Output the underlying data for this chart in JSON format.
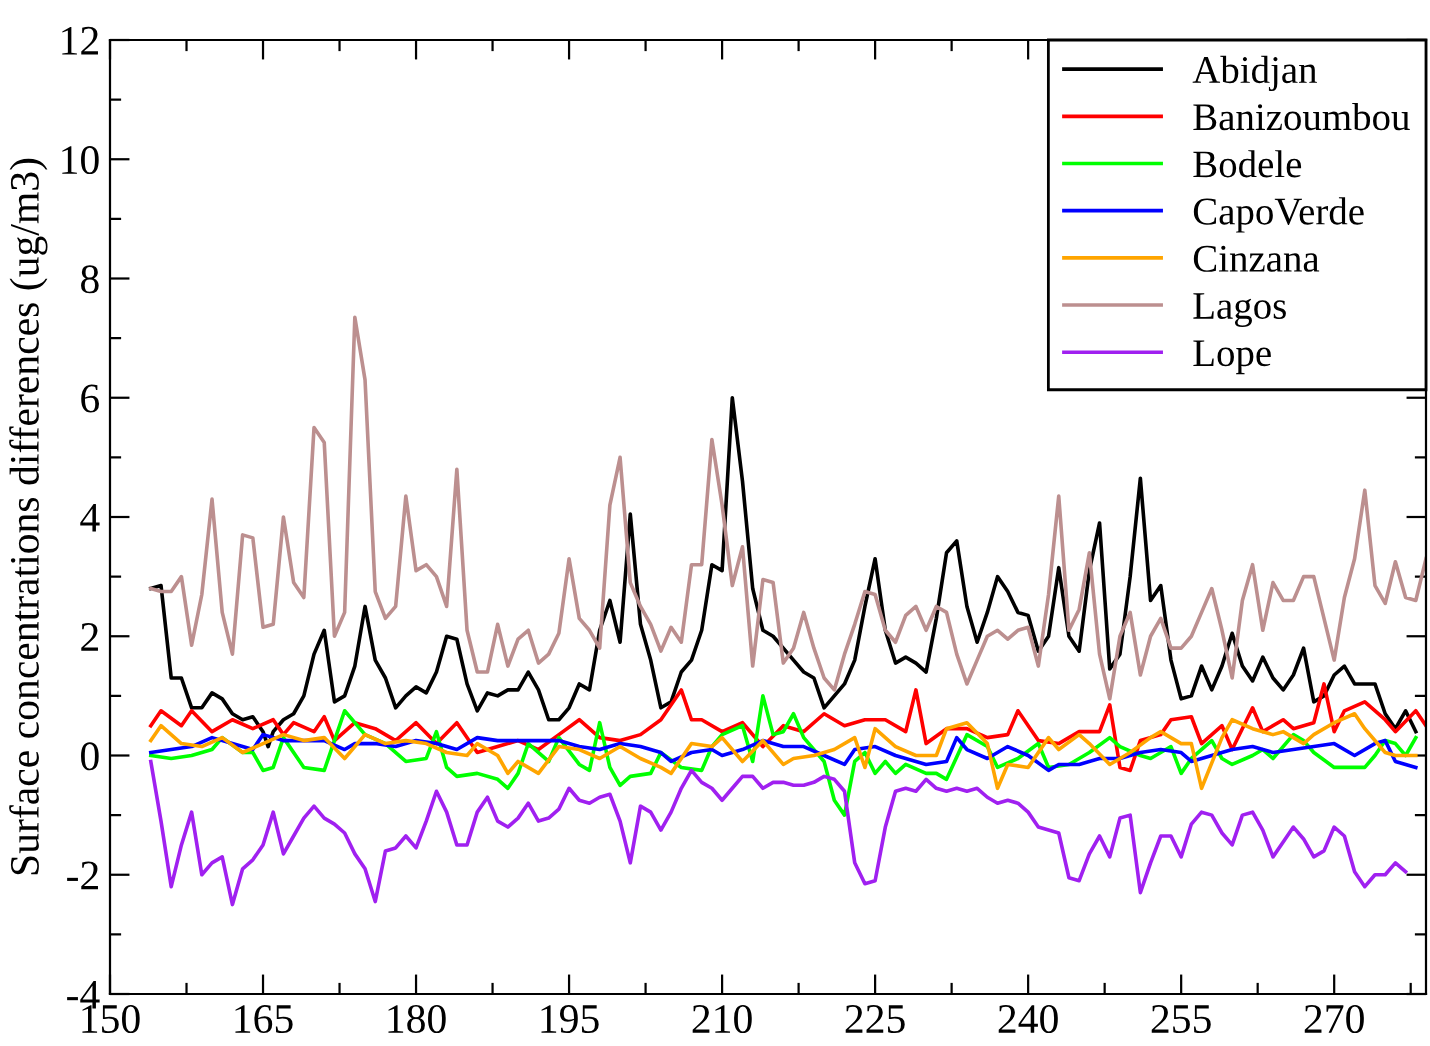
{
  "chart_data": {
    "type": "line",
    "ylabel": "Surface concentrations differences (ug/m3)",
    "xlim": [
      150,
      279
    ],
    "ylim": [
      -4,
      12
    ],
    "xticks": [
      150,
      {
        "value": 157.5,
        "label": null
      },
      165,
      {
        "value": 172.5,
        "label": null
      },
      180,
      {
        "value": 187.5,
        "label": null
      },
      195,
      {
        "value": 202.5,
        "label": null
      },
      210,
      {
        "value": 217.5,
        "label": null
      },
      225,
      {
        "value": 232.5,
        "label": null
      },
      240,
      {
        "value": 247.5,
        "label": null
      },
      255,
      {
        "value": 262.5,
        "label": null
      },
      270,
      {
        "value": 277.5,
        "label": null
      }
    ],
    "yticks": [
      -4,
      {
        "value": -3,
        "label": null
      },
      -2,
      {
        "value": -1,
        "label": null
      },
      0,
      {
        "value": 1,
        "label": null
      },
      2,
      {
        "value": 3,
        "label": null
      },
      4,
      {
        "value": 5,
        "label": null
      },
      6,
      {
        "value": 7,
        "label": null
      },
      8,
      {
        "value": 9,
        "label": null
      },
      10,
      {
        "value": 11,
        "label": null
      },
      12
    ],
    "grid": false,
    "legend": "top right",
    "marker": "none",
    "line_style": "solid",
    "series": [
      {
        "name": "Abidjan",
        "color": "#000000",
        "x": [
          154,
          155,
          156,
          157,
          158,
          159,
          160,
          161,
          162,
          163,
          164,
          165,
          165.5,
          166,
          167,
          168,
          169,
          170,
          171,
          172,
          173,
          174,
          175,
          176,
          177,
          178,
          179,
          180,
          181,
          182,
          183,
          184,
          185,
          186,
          187,
          188,
          189,
          190,
          191,
          192,
          193,
          194,
          195,
          196,
          197,
          198,
          199,
          200,
          201,
          202,
          203,
          204,
          205,
          206,
          207,
          208,
          209,
          210,
          211,
          212,
          213,
          214,
          215,
          216,
          217,
          218,
          219,
          220,
          221,
          222,
          223,
          224,
          225,
          226,
          227,
          228,
          229,
          230,
          231,
          232,
          233,
          234,
          235,
          236,
          237,
          238,
          239,
          240,
          241,
          242,
          243,
          244,
          245,
          246,
          247,
          248,
          249,
          250,
          251,
          252,
          253,
          254,
          255,
          256,
          257,
          258,
          259,
          260,
          261,
          262,
          263,
          264,
          265,
          266,
          267,
          268,
          269,
          270,
          271,
          272,
          273,
          274,
          275,
          276,
          277,
          278
        ],
        "values": [
          2.8,
          2.85,
          1.3,
          1.3,
          0.8,
          0.8,
          1.05,
          0.95,
          0.7,
          0.6,
          0.65,
          0.4,
          0.15,
          0.4,
          0.6,
          0.7,
          1.0,
          1.7,
          2.1,
          0.9,
          1.0,
          1.5,
          2.5,
          1.6,
          1.3,
          0.8,
          1.0,
          1.15,
          1.05,
          1.4,
          2.0,
          1.95,
          1.2,
          0.75,
          1.05,
          1.0,
          1.1,
          1.1,
          1.4,
          1.1,
          0.6,
          0.6,
          0.8,
          1.2,
          1.1,
          2.1,
          2.6,
          1.9,
          4.05,
          2.2,
          1.6,
          0.8,
          0.9,
          1.4,
          1.6,
          2.1,
          3.2,
          3.1,
          6.0,
          4.6,
          2.8,
          2.1,
          2.0,
          1.8,
          1.6,
          1.4,
          1.3,
          0.8,
          1.0,
          1.2,
          1.6,
          2.5,
          3.3,
          2.1,
          1.55,
          1.65,
          1.55,
          1.4,
          2.3,
          3.4,
          3.6,
          2.5,
          1.9,
          2.4,
          3.0,
          2.75,
          2.4,
          2.35,
          1.75,
          2.0,
          3.15,
          2.0,
          1.75,
          3.1,
          3.9,
          1.45,
          1.7,
          3.0,
          4.65,
          2.6,
          2.85,
          1.6,
          0.95,
          1.0,
          1.5,
          1.1,
          1.5,
          2.05,
          1.5,
          1.25,
          1.65,
          1.3,
          1.1,
          1.35,
          1.8,
          0.9,
          1.0,
          1.35,
          1.5,
          1.2,
          1.2,
          1.2,
          0.7,
          0.45,
          0.75,
          0.4
        ]
      },
      {
        "name": "Banizoumbou",
        "color": "#ff0000",
        "x": [
          154,
          155,
          157,
          158,
          160,
          162,
          164,
          166,
          167,
          168,
          170,
          171,
          172,
          174,
          176,
          178,
          180,
          182,
          184,
          186,
          188,
          190,
          192,
          194,
          196,
          198,
          200,
          202,
          204,
          206,
          207,
          208,
          210,
          212,
          214,
          216,
          218,
          220,
          222,
          224,
          226,
          228,
          229,
          230,
          232,
          234,
          236,
          238,
          239,
          241,
          243,
          245,
          247,
          248,
          249,
          250,
          251,
          253,
          254,
          256,
          257,
          259,
          260,
          262,
          263,
          265,
          266,
          268,
          269,
          270,
          271,
          273,
          275,
          276,
          278,
          279
        ],
        "values": [
          0.5,
          0.75,
          0.5,
          0.75,
          0.4,
          0.6,
          0.45,
          0.6,
          0.35,
          0.55,
          0.4,
          0.65,
          0.25,
          0.55,
          0.45,
          0.25,
          0.55,
          0.2,
          0.55,
          0.05,
          0.15,
          0.25,
          0.1,
          0.35,
          0.6,
          0.3,
          0.25,
          0.35,
          0.6,
          1.1,
          0.6,
          0.6,
          0.4,
          0.55,
          0.15,
          0.5,
          0.4,
          0.7,
          0.5,
          0.6,
          0.6,
          0.4,
          1.1,
          0.2,
          0.45,
          0.45,
          0.3,
          0.35,
          0.75,
          0.25,
          0.2,
          0.4,
          0.4,
          0.85,
          -0.2,
          -0.25,
          0.25,
          0.35,
          0.6,
          0.65,
          0.2,
          0.5,
          0.1,
          0.8,
          0.4,
          0.6,
          0.45,
          0.55,
          1.2,
          0.4,
          0.75,
          0.9,
          0.6,
          0.4,
          0.75,
          0.5
        ]
      },
      {
        "name": "Bodele",
        "color": "#00ff00",
        "x": [
          154,
          156,
          158,
          160,
          161,
          163,
          164,
          165,
          166,
          167,
          169,
          171,
          172,
          173,
          175,
          177,
          179,
          181,
          182,
          183,
          184,
          186,
          188,
          189,
          190,
          191,
          193,
          194,
          196,
          197,
          198,
          199,
          200,
          201,
          203,
          204,
          206,
          208,
          209,
          210,
          212,
          213,
          214,
          215,
          216,
          217,
          218,
          220,
          221,
          222,
          223,
          224,
          225,
          226,
          227,
          228,
          230,
          231,
          232,
          234,
          236,
          237,
          239,
          241,
          242,
          244,
          246,
          248,
          249,
          251,
          252,
          254,
          255,
          256,
          258,
          259,
          260,
          262,
          263,
          264,
          266,
          267,
          268,
          270,
          271,
          273,
          274,
          275,
          276,
          277,
          278
        ],
        "values": [
          0.0,
          -0.05,
          0.0,
          0.1,
          0.3,
          0.05,
          0.05,
          -0.25,
          -0.2,
          0.3,
          -0.2,
          -0.25,
          0.25,
          0.75,
          0.35,
          0.2,
          -0.1,
          -0.05,
          0.4,
          -0.2,
          -0.35,
          -0.3,
          -0.4,
          -0.55,
          -0.3,
          0.2,
          -0.1,
          0.3,
          -0.15,
          -0.25,
          0.55,
          -0.2,
          -0.5,
          -0.35,
          -0.3,
          0.05,
          -0.2,
          -0.25,
          0.15,
          0.35,
          0.5,
          -0.1,
          1.0,
          0.35,
          0.4,
          0.7,
          0.3,
          -0.1,
          -0.75,
          -1.0,
          -0.1,
          0.05,
          -0.3,
          -0.1,
          -0.3,
          -0.15,
          -0.3,
          -0.3,
          -0.4,
          0.35,
          0.15,
          -0.2,
          -0.05,
          0.2,
          -0.2,
          -0.15,
          0.05,
          0.3,
          0.15,
          0.0,
          -0.05,
          0.15,
          -0.3,
          -0.05,
          0.25,
          -0.05,
          -0.15,
          0.0,
          0.1,
          -0.05,
          0.35,
          0.25,
          0.05,
          -0.2,
          -0.2,
          -0.2,
          0.0,
          0.25,
          0.2,
          0.0,
          0.3
        ]
      },
      {
        "name": "CapoVerde",
        "color": "#0000ff",
        "x": [
          154,
          156,
          158,
          160,
          162,
          164,
          165,
          167,
          169,
          171,
          173,
          174,
          176,
          178,
          180,
          182,
          184,
          186,
          188,
          190,
          192,
          194,
          196,
          198,
          200,
          202,
          204,
          205,
          207,
          209,
          210,
          212,
          214,
          216,
          218,
          220,
          222,
          223,
          225,
          227,
          229,
          230,
          232,
          233,
          234,
          236,
          238,
          240,
          242,
          243,
          245,
          247,
          249,
          251,
          253,
          255,
          256,
          258,
          260,
          262,
          264,
          266,
          268,
          270,
          272,
          274,
          275,
          276,
          278
        ],
        "values": [
          0.05,
          0.1,
          0.15,
          0.3,
          0.2,
          0.1,
          0.35,
          0.25,
          0.25,
          0.25,
          0.1,
          0.2,
          0.2,
          0.15,
          0.25,
          0.2,
          0.1,
          0.3,
          0.25,
          0.25,
          0.25,
          0.25,
          0.15,
          0.1,
          0.2,
          0.15,
          0.05,
          -0.1,
          0.05,
          0.1,
          0.0,
          0.1,
          0.25,
          0.15,
          0.15,
          0.0,
          -0.15,
          0.1,
          0.15,
          0.0,
          -0.1,
          -0.15,
          -0.1,
          0.3,
          0.1,
          -0.05,
          0.15,
          0.0,
          -0.25,
          -0.15,
          -0.15,
          -0.05,
          -0.05,
          0.05,
          0.1,
          0.05,
          -0.1,
          0.0,
          0.1,
          0.15,
          0.05,
          0.1,
          0.15,
          0.2,
          0.0,
          0.2,
          0.25,
          -0.1,
          -0.2
        ]
      },
      {
        "name": "Cinzana",
        "color": "#ffa500",
        "x": [
          154,
          155,
          157,
          159,
          161,
          163,
          165,
          167,
          169,
          171,
          173,
          175,
          177,
          179,
          181,
          183,
          185,
          186,
          188,
          189,
          190,
          192,
          194,
          196,
          198,
          200,
          202,
          204,
          205,
          207,
          209,
          210,
          212,
          214,
          216,
          217,
          219,
          221,
          223,
          224,
          225,
          227,
          229,
          231,
          232,
          234,
          236,
          237,
          238,
          240,
          242,
          243,
          245,
          246,
          248,
          250,
          252,
          253,
          255,
          256,
          257,
          259,
          260,
          262,
          264,
          265,
          267,
          268,
          270,
          272,
          273,
          275,
          276,
          278
        ],
        "values": [
          0.25,
          0.5,
          0.2,
          0.15,
          0.3,
          0.05,
          0.2,
          0.35,
          0.25,
          0.3,
          -0.05,
          0.35,
          0.2,
          0.25,
          0.2,
          0.05,
          0.0,
          0.2,
          0.0,
          -0.3,
          -0.1,
          -0.3,
          0.15,
          0.1,
          -0.05,
          0.15,
          -0.05,
          -0.2,
          -0.3,
          0.2,
          0.15,
          0.3,
          -0.1,
          0.25,
          -0.15,
          -0.05,
          0.0,
          0.1,
          0.3,
          -0.2,
          0.45,
          0.15,
          0.0,
          0.0,
          0.45,
          0.55,
          0.2,
          -0.55,
          -0.15,
          -0.2,
          0.3,
          0.1,
          0.35,
          0.2,
          -0.15,
          0.05,
          0.3,
          0.4,
          0.2,
          0.2,
          -0.55,
          0.3,
          0.6,
          0.45,
          0.35,
          0.4,
          0.2,
          0.35,
          0.55,
          0.7,
          0.45,
          0.05,
          0.0,
          0.0
        ]
      },
      {
        "name": "Lagos",
        "color": "#bc8f8f",
        "x": [
          154,
          155,
          156,
          157,
          158,
          159,
          160,
          161,
          162,
          163,
          164,
          165,
          166,
          167,
          168,
          169,
          170,
          171,
          172,
          173,
          174,
          175,
          176,
          177,
          178,
          179,
          180,
          181,
          182,
          183,
          184,
          185,
          186,
          187,
          188,
          189,
          190,
          191,
          192,
          193,
          194,
          195,
          196,
          197,
          198,
          199,
          200,
          201,
          202,
          203,
          204,
          205,
          206,
          207,
          208,
          209,
          210,
          211,
          212,
          213,
          214,
          215,
          216,
          217,
          218,
          219,
          220,
          221,
          222,
          223,
          224,
          225,
          226,
          227,
          228,
          229,
          230,
          231,
          232,
          233,
          234,
          235,
          236,
          237,
          238,
          239,
          240,
          241,
          242,
          243,
          244,
          245,
          246,
          247,
          248,
          249,
          250,
          251,
          252,
          253,
          254,
          255,
          256,
          257,
          258,
          259,
          260,
          261,
          262,
          263,
          264,
          265,
          266,
          267,
          268,
          269,
          270,
          271,
          272,
          273,
          274,
          275,
          276,
          277,
          278,
          279
        ],
        "values": [
          2.8,
          2.75,
          2.75,
          3.0,
          1.85,
          2.7,
          4.3,
          2.4,
          1.7,
          3.7,
          3.65,
          2.15,
          2.2,
          4.0,
          2.9,
          2.65,
          5.5,
          5.25,
          2.0,
          2.4,
          7.35,
          6.3,
          2.75,
          2.3,
          2.5,
          4.35,
          3.1,
          3.2,
          3.0,
          2.5,
          4.8,
          2.1,
          1.4,
          1.4,
          2.2,
          1.5,
          1.95,
          2.1,
          1.55,
          1.7,
          2.05,
          3.3,
          2.3,
          2.1,
          1.8,
          4.2,
          5.0,
          2.9,
          2.5,
          2.2,
          1.75,
          2.15,
          1.9,
          3.2,
          3.2,
          5.3,
          4.2,
          2.85,
          3.5,
          1.5,
          2.95,
          2.9,
          1.55,
          1.8,
          2.4,
          1.8,
          1.3,
          1.1,
          1.7,
          2.2,
          2.75,
          2.7,
          2.1,
          1.9,
          2.35,
          2.5,
          2.1,
          2.5,
          2.4,
          1.7,
          1.2,
          1.6,
          2.0,
          2.1,
          1.95,
          2.1,
          2.15,
          1.5,
          2.7,
          4.35,
          2.1,
          2.45,
          3.4,
          1.7,
          0.95,
          2.0,
          2.4,
          1.35,
          2.0,
          2.3,
          1.8,
          1.8,
          2.0,
          2.4,
          2.8,
          2.1,
          1.3,
          2.6,
          3.2,
          2.1,
          2.9,
          2.6,
          2.6,
          3.0,
          3.0,
          2.3,
          1.6,
          2.65,
          3.3,
          4.45,
          2.85,
          2.55,
          3.25,
          2.65,
          2.6,
          3.3
        ]
      },
      {
        "name": "Lope",
        "color": "#a020f0",
        "x": [
          154,
          155,
          156,
          157,
          158,
          159,
          160,
          161,
          162,
          163,
          164,
          165,
          166,
          167,
          168,
          169,
          170,
          171,
          172,
          173,
          174,
          175,
          176,
          177,
          178,
          179,
          180,
          181,
          182,
          183,
          184,
          185,
          186,
          187,
          188,
          189,
          190,
          191,
          192,
          193,
          194,
          195,
          196,
          197,
          198,
          199,
          200,
          201,
          202,
          203,
          204,
          205,
          206,
          207,
          208,
          209,
          210,
          211,
          212,
          213,
          214,
          215,
          216,
          217,
          218,
          219,
          220,
          221,
          222,
          223,
          224,
          225,
          226,
          227,
          228,
          229,
          230,
          231,
          232,
          233,
          234,
          235,
          236,
          237,
          238,
          239,
          240,
          241,
          242,
          243,
          244,
          245,
          246,
          247,
          248,
          249,
          250,
          251,
          252,
          253,
          254,
          255,
          256,
          257,
          258,
          259,
          260,
          261,
          262,
          263,
          264,
          265,
          266,
          267,
          268,
          269,
          270,
          271,
          272,
          273,
          274,
          275,
          276,
          277
        ],
        "values": [
          -0.1,
          -1.1,
          -2.2,
          -1.5,
          -0.95,
          -2.0,
          -1.8,
          -1.7,
          -2.5,
          -1.9,
          -1.75,
          -1.5,
          -0.95,
          -1.65,
          -1.35,
          -1.05,
          -0.85,
          -1.05,
          -1.15,
          -1.3,
          -1.65,
          -1.9,
          -2.45,
          -1.6,
          -1.55,
          -1.35,
          -1.55,
          -1.1,
          -0.6,
          -0.95,
          -1.5,
          -1.5,
          -0.95,
          -0.7,
          -1.1,
          -1.2,
          -1.05,
          -0.8,
          -1.1,
          -1.05,
          -0.9,
          -0.55,
          -0.75,
          -0.8,
          -0.7,
          -0.65,
          -1.1,
          -1.8,
          -0.85,
          -0.95,
          -1.25,
          -0.95,
          -0.55,
          -0.25,
          -0.45,
          -0.55,
          -0.75,
          -0.55,
          -0.35,
          -0.35,
          -0.55,
          -0.45,
          -0.45,
          -0.5,
          -0.5,
          -0.45,
          -0.35,
          -0.4,
          -0.6,
          -1.8,
          -2.15,
          -2.1,
          -1.2,
          -0.6,
          -0.55,
          -0.6,
          -0.4,
          -0.55,
          -0.6,
          -0.55,
          -0.6,
          -0.55,
          -0.7,
          -0.8,
          -0.75,
          -0.8,
          -0.95,
          -1.2,
          -1.25,
          -1.3,
          -2.05,
          -2.1,
          -1.65,
          -1.35,
          -1.7,
          -1.05,
          -1.0,
          -2.3,
          -1.8,
          -1.35,
          -1.35,
          -1.7,
          -1.15,
          -0.95,
          -1.0,
          -1.3,
          -1.5,
          -1.0,
          -0.95,
          -1.25,
          -1.7,
          -1.45,
          -1.2,
          -1.4,
          -1.7,
          -1.6,
          -1.2,
          -1.35,
          -1.95,
          -2.2,
          -2.0,
          -2.0,
          -1.8,
          -1.95
        ]
      }
    ]
  }
}
